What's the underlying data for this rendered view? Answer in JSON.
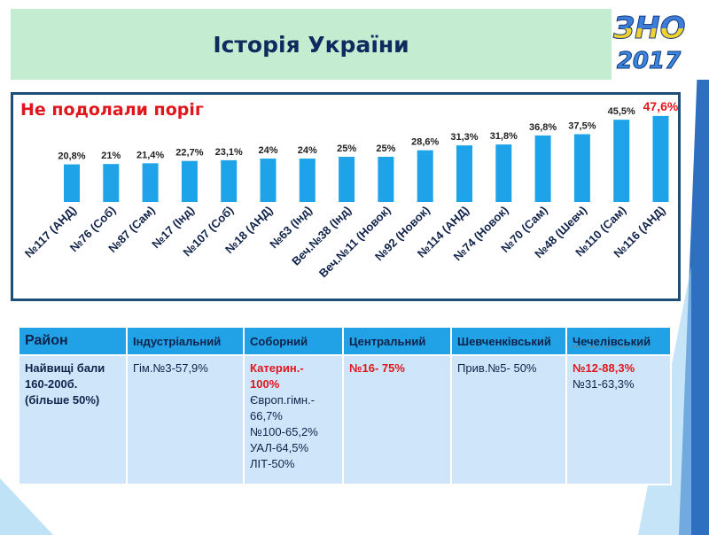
{
  "header": {
    "title": "Історія України",
    "logo_text": "ЗНО",
    "logo_year": "2017"
  },
  "chart_data": {
    "type": "bar",
    "title": "Не подолали поріг",
    "categories": [
      "№117 (АНД)",
      "№76 (Соб)",
      "№87 (Сам)",
      "№17 (Інд)",
      "№107 (Соб)",
      "№18 (АНД)",
      "№63 (Інд)",
      "Веч.№38 (Інд)",
      "Веч.№11 (Новок)",
      "№92 (Новок)",
      "№114 (АНД)",
      "№74 (Новок)",
      "№70 (Сам)",
      "№48 (Шевч)",
      "№110 (Сам)",
      "№116 (АНД)"
    ],
    "values": [
      20.8,
      21,
      21.4,
      22.7,
      23.1,
      24,
      24,
      25,
      25,
      28.6,
      31.3,
      31.8,
      36.8,
      37.5,
      45.5,
      47.6
    ],
    "labels": [
      "20,8%",
      "21%",
      "21,4%",
      "22,7%",
      "23,1%",
      "24%",
      "24%",
      "25%",
      "25%",
      "28,6%",
      "31,3%",
      "31,8%",
      "36,8%",
      "37,5%",
      "45,5%",
      "47,6%"
    ],
    "highlight_index": 15,
    "bar_color": "#1fa3e8",
    "highlight_color": "#e0161c",
    "ylim": [
      0,
      50
    ]
  },
  "table": {
    "headers": [
      "Район",
      "Індустріальний",
      "Соборний",
      "Центральний",
      "Шевченківський",
      "Чечелівський"
    ],
    "row_label": [
      "Найвищі бали",
      "160-200б.",
      "(більше 50%)"
    ],
    "ind": "Гім.№3-57,9%",
    "sob_red": [
      "Катерин.-",
      "100%"
    ],
    "sob": [
      "Європ.гімн.-",
      "66,7%",
      "№100-65,2%",
      "УАЛ-64,5%",
      "ЛІТ-50%"
    ],
    "cen_red": "№16- 75%",
    "shev": "Прив.№5- 50%",
    "chech_red": "№12-88,3%",
    "chech": "№31-63,3%"
  }
}
